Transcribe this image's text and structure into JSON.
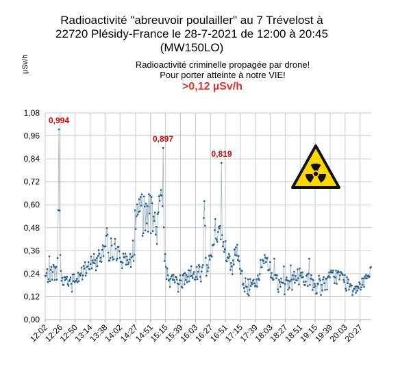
{
  "chart_data": {
    "type": "line",
    "title_lines": [
      "Radioactivité \"abreuvoir poulailler\" au 7 Trévelost à",
      "22720 Plésidy-France le 28-7-2021 de 12:00 à 20:45",
      "(MW150LO)"
    ],
    "ylabel": "µSv/h",
    "subtitle_lines": [
      "Radioactivité criminelle propagée par drone!",
      "Pour porter atteinte à notre VIE!"
    ],
    "threshold_text": ">0,12 µSv/h",
    "ylim": [
      0,
      1.08
    ],
    "yticks": [
      "0,00",
      "0,12",
      "0,24",
      "0,36",
      "0,48",
      "0,60",
      "0,72",
      "0,84",
      "0,96",
      "1,08"
    ],
    "xticks": [
      "12:02",
      "12:26",
      "12:50",
      "13:14",
      "13:38",
      "14:02",
      "14:27",
      "14:51",
      "15:15",
      "15:39",
      "16:03",
      "16:27",
      "16:51",
      "17:15",
      "17:39",
      "18:03",
      "18:27",
      "18:51",
      "19:15",
      "19:39",
      "20:03",
      "20:27"
    ],
    "annotations": [
      {
        "label": "0,994",
        "x": "12:24",
        "y": 0.994
      },
      {
        "label": "0,897",
        "x": "15:11",
        "y": 0.897
      },
      {
        "label": "0,819",
        "x": "16:45",
        "y": 0.819
      }
    ],
    "grid": true,
    "colors": {
      "line": "#9fb4c8",
      "marker": "#1f5f8b",
      "annotation": "#e00000",
      "threshold": "#e8312f",
      "hazard_yellow": "#ffd700"
    },
    "icon": "radiation-hazard-icon"
  }
}
